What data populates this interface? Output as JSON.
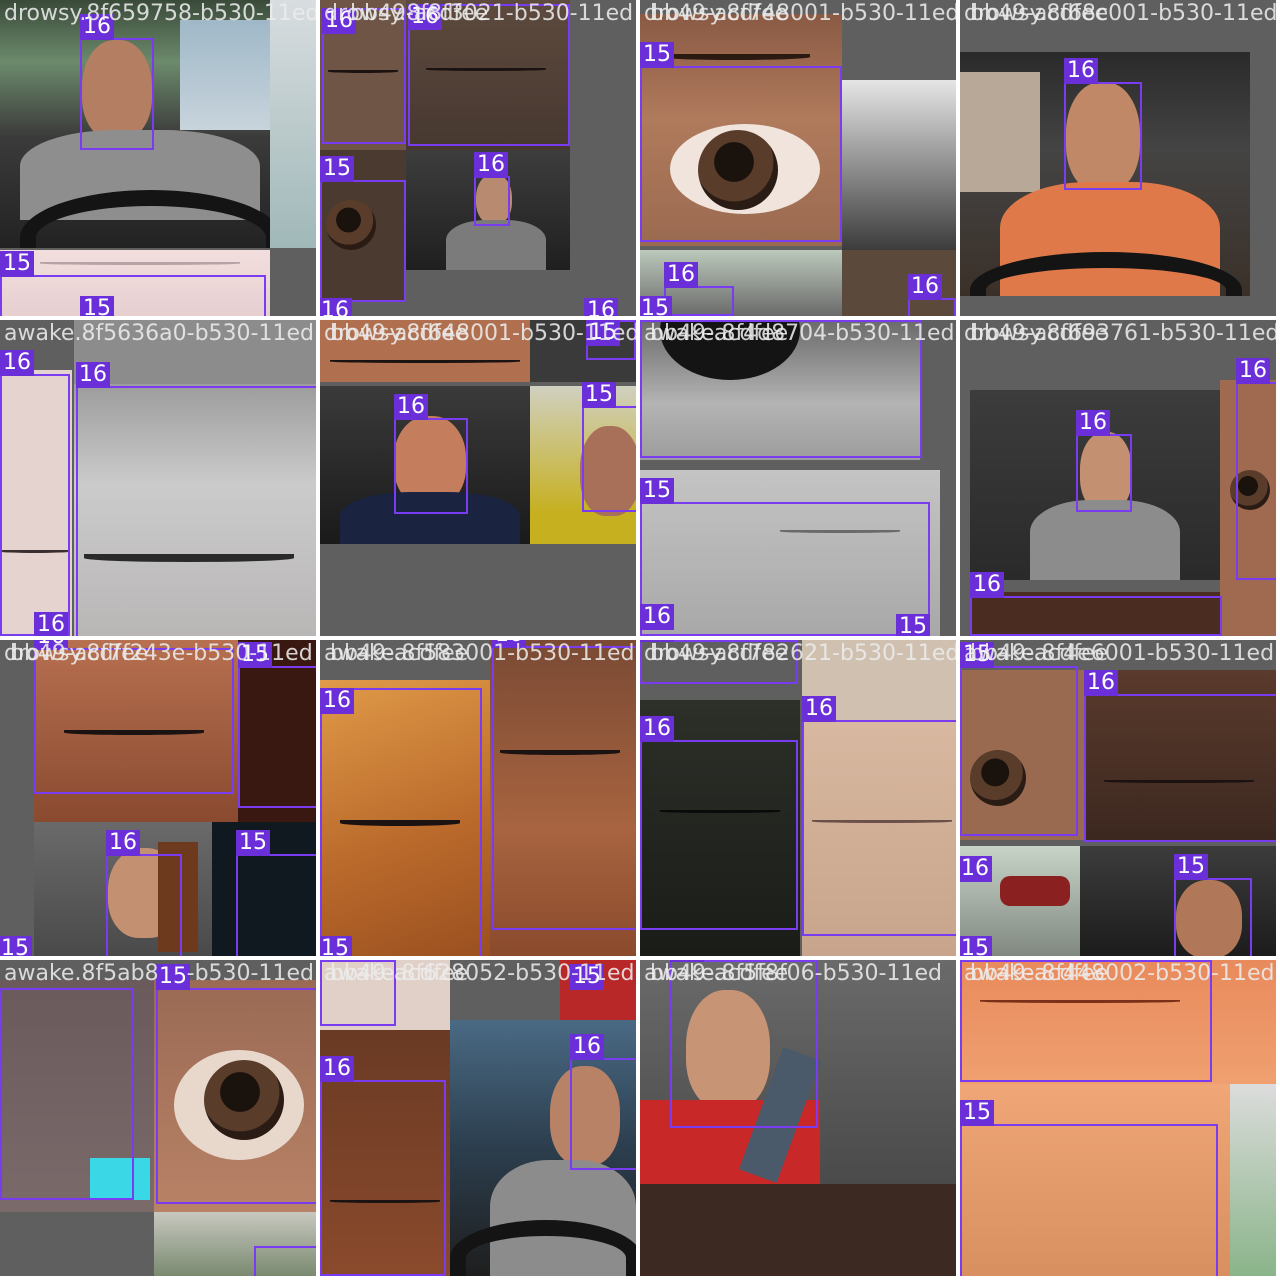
{
  "tiles": [
    {
      "label": "drowsy.8f659758-b530-11ed",
      "boxes": [
        {
          "cls": "16"
        },
        {
          "cls": "15"
        },
        {
          "cls": "15"
        }
      ]
    },
    {
      "label": "drowsy.8f8f3021-b530-11ed",
      "label_overlay": "bb49-acdfee",
      "boxes": [
        {
          "cls": "16"
        },
        {
          "cls": "16"
        },
        {
          "cls": "15"
        },
        {
          "cls": "16"
        },
        {
          "cls": "16"
        },
        {
          "cls": "16"
        }
      ]
    },
    {
      "label": "drowsy.8f748001-b530-11ed",
      "label_overlay": "bb49-acdfee",
      "boxes": [
        {
          "cls": "15"
        },
        {
          "cls": "16"
        },
        {
          "cls": "15"
        },
        {
          "cls": "16"
        }
      ]
    },
    {
      "label": "drowsy.8f68c001-b530-11ed",
      "label_overlay": "bb49-acdfee",
      "boxes": [
        {
          "cls": "16"
        }
      ]
    },
    {
      "label": "awake.8f5636a0-b530-11ed",
      "boxes": [
        {
          "cls": "16"
        },
        {
          "cls": "16"
        },
        {
          "cls": "16"
        }
      ]
    },
    {
      "label": "drowsy.8f648001-b530-11ed",
      "label_overlay": "bb49-acdfee",
      "boxes": [
        {
          "cls": "16"
        },
        {
          "cls": "15"
        },
        {
          "cls": "15"
        }
      ]
    },
    {
      "label": "awake.8f4d8704-b530-11ed",
      "label_overlay": "bb49-acdfee",
      "boxes": [
        {
          "cls": "15"
        },
        {
          "cls": "16"
        },
        {
          "cls": "15"
        }
      ]
    },
    {
      "label": "drowsy.8f693761-b530-11ed",
      "label_overlay": "bb49-acdfee",
      "boxes": [
        {
          "cls": "16"
        },
        {
          "cls": "16"
        },
        {
          "cls": "16"
        }
      ]
    },
    {
      "label": "drowsy.8f7f243e-b530-11ed",
      "label_overlay": "bb49-acdfee",
      "boxes": [
        {
          "cls": "16"
        },
        {
          "cls": "15"
        },
        {
          "cls": "16"
        },
        {
          "cls": "15"
        },
        {
          "cls": "15"
        }
      ]
    },
    {
      "label": "awake.8f583001-b530-11ed",
      "label_overlay": "bb49-acdfee",
      "boxes": [
        {
          "cls": "16"
        },
        {
          "cls": "16"
        },
        {
          "cls": "15"
        }
      ]
    },
    {
      "label": "drowsy.8f782621-b530-11ed",
      "label_overlay": "bb49-acdfee",
      "boxes": [
        {
          "cls": "16"
        },
        {
          "cls": "16"
        },
        {
          "cls": "16"
        }
      ]
    },
    {
      "label": "awake.8f4e6001-b530-11ed",
      "label_overlay": "bb49-acdfee",
      "boxes": [
        {
          "cls": "15"
        },
        {
          "cls": "16"
        },
        {
          "cls": "16"
        },
        {
          "cls": "15"
        },
        {
          "cls": "15"
        }
      ]
    },
    {
      "label": "awake.8f5ab8",
      "label_tail": "-b530-11ed",
      "boxes": [
        {
          "cls": "15"
        }
      ]
    },
    {
      "label": "awake.8f628052-b530-11ed",
      "label_overlay": "bb49-acdfee",
      "boxes": [
        {
          "cls": "15"
        },
        {
          "cls": "16"
        },
        {
          "cls": "16"
        },
        {
          "cls": "15"
        }
      ]
    },
    {
      "label": "awake.8f5f8f06-b530-11ed",
      "label_overlay": "bb49-acdfee",
      "boxes": [
        {
          "cls": "15"
        }
      ]
    },
    {
      "label": "awake.8f448002-b530-11ed",
      "label_overlay": "bb49-acdfee",
      "boxes": [
        {
          "cls": "15"
        }
      ]
    }
  ],
  "colors": {
    "box": "#7a3cf0",
    "tag": "#6a2fd9",
    "pad": "#5f5f5f",
    "label": "#ececec"
  }
}
